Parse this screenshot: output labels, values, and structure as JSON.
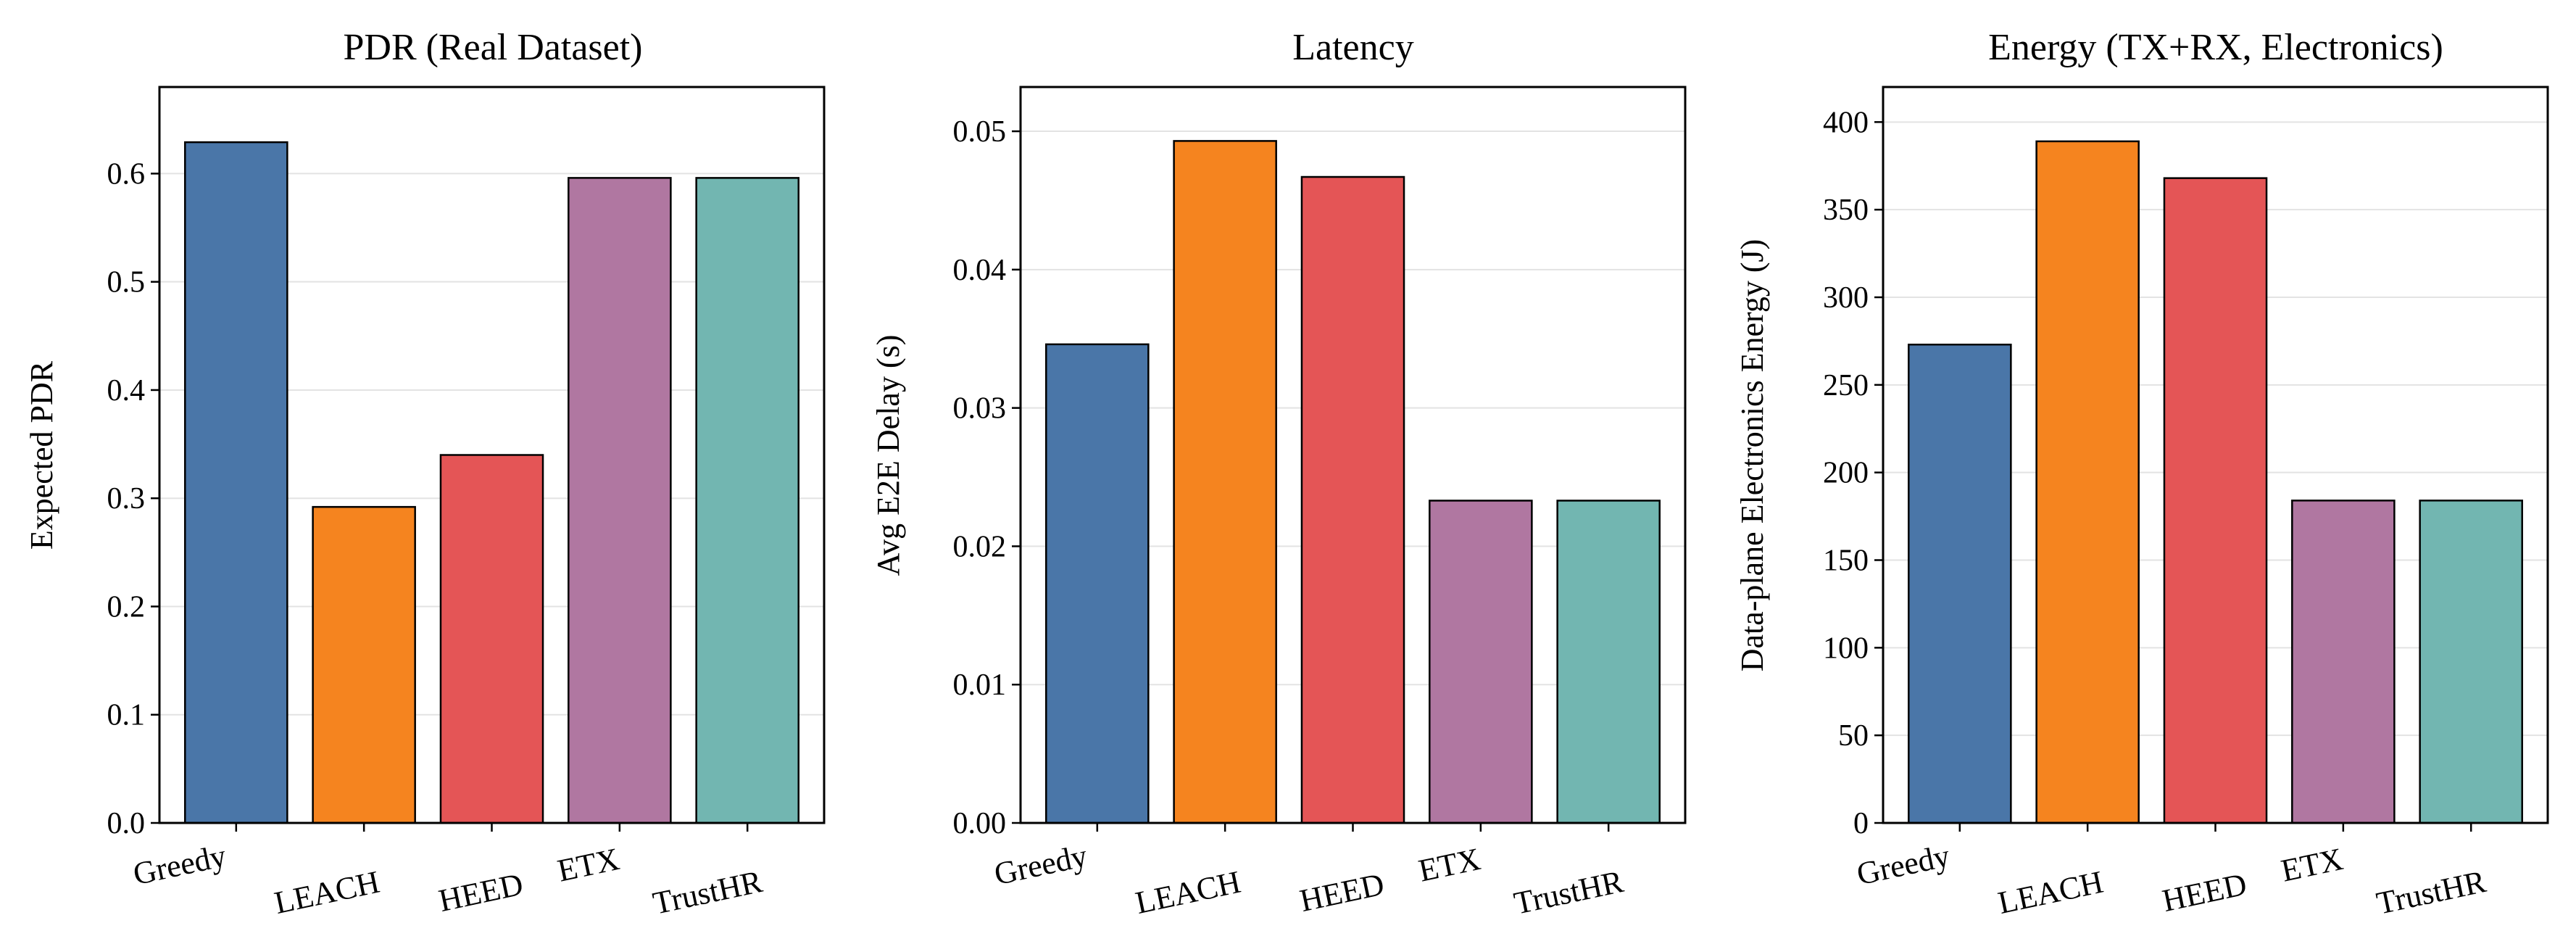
{
  "chart_data": [
    {
      "type": "bar",
      "title": "PDR (Real Dataset)",
      "xlabel": "",
      "ylabel": "Expected PDR",
      "categories": [
        "Greedy",
        "LEACH",
        "HEED",
        "ETX",
        "TrustHR"
      ],
      "values": [
        0.629,
        0.292,
        0.34,
        0.596,
        0.596
      ],
      "ylim": [
        0,
        0.68
      ],
      "yticks": [
        0.0,
        0.1,
        0.2,
        0.3,
        0.4,
        0.5,
        0.6
      ],
      "tick_decimals": 1,
      "grid": "horizontal"
    },
    {
      "type": "bar",
      "title": "Latency",
      "xlabel": "",
      "ylabel": "Avg E2E Delay (s)",
      "categories": [
        "Greedy",
        "LEACH",
        "HEED",
        "ETX",
        "TrustHR"
      ],
      "values": [
        0.0346,
        0.0493,
        0.0467,
        0.0233,
        0.0233
      ],
      "ylim": [
        0,
        0.0532
      ],
      "yticks": [
        0.0,
        0.01,
        0.02,
        0.03,
        0.04,
        0.05
      ],
      "tick_decimals": 2,
      "grid": "horizontal"
    },
    {
      "type": "bar",
      "title": "Energy (TX+RX, Electronics)",
      "xlabel": "",
      "ylabel": "Data-plane Electronics Energy (J)",
      "categories": [
        "Greedy",
        "LEACH",
        "HEED",
        "ETX",
        "TrustHR"
      ],
      "values": [
        273,
        389,
        368,
        184,
        184
      ],
      "ylim": [
        0,
        420
      ],
      "yticks": [
        0,
        50,
        100,
        150,
        200,
        250,
        300,
        350,
        400
      ],
      "tick_decimals": 0,
      "grid": "horizontal"
    }
  ],
  "colors": {
    "Greedy": "#4a76a8",
    "LEACH": "#f5841f",
    "HEED": "#e45556",
    "ETX": "#b077a1",
    "TrustHR": "#72b6b1",
    "grid": "#e3e3e3",
    "edge": "#000000"
  }
}
